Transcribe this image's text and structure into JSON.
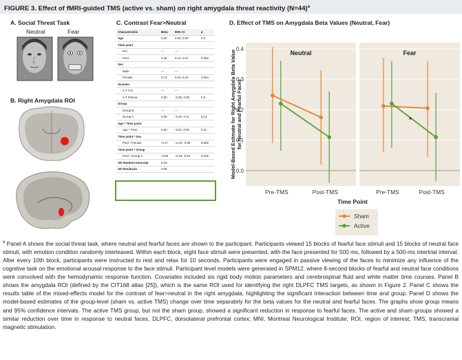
{
  "figure": {
    "title": "FIGURE 3.  Effect of fMRI-guided TMS (active vs. sham) on right amygdala threat reactivity (N=44)",
    "title_sup": "a"
  },
  "panel_a": {
    "title": "A. Social Threat Task",
    "labels": [
      "Neutral",
      "Fear"
    ]
  },
  "panel_b": {
    "title": "B. Right Amygdala ROI"
  },
  "panel_c": {
    "title": "C. Contrast Fear>Neutral",
    "headers": [
      "Characteristic",
      "Beta",
      "95% CI",
      "p"
    ],
    "rows": [
      {
        "label": "Age",
        "beta": "0.00",
        "ci": "0.00, 0.00",
        "p": "0.3",
        "type": "bold"
      },
      {
        "label": "Time point",
        "beta": "",
        "ci": "",
        "p": "",
        "type": "bold"
      },
      {
        "label": "Pre",
        "beta": "—",
        "ci": "—",
        "p": "",
        "type": "ind"
      },
      {
        "label": "Post",
        "beta": "0.36",
        "ci": "0.14, 0.57",
        "p": "0.002",
        "type": "ind"
      },
      {
        "label": "Sex",
        "beta": "",
        "ci": "",
        "p": "",
        "type": "bold"
      },
      {
        "label": "Male",
        "beta": "—",
        "ci": "—",
        "p": "",
        "type": "ind"
      },
      {
        "label": "Female",
        "beta": "0.13",
        "ci": "0.04, 0.22",
        "p": "0.004",
        "type": "ind"
      },
      {
        "label": "Scanner",
        "beta": "",
        "ci": "",
        "p": "",
        "type": "bold"
      },
      {
        "label": "3-T Trio",
        "beta": "—",
        "ci": "—",
        "p": "",
        "type": "ind"
      },
      {
        "label": "3-T Prisma",
        "beta": "0.00",
        "ci": "-0.06, 0.05",
        "p": "0.9",
        "type": "ind"
      },
      {
        "label": "Group",
        "beta": "",
        "ci": "",
        "p": "",
        "type": "bold"
      },
      {
        "label": "Group B",
        "beta": "—",
        "ci": "—",
        "p": "",
        "type": "ind"
      },
      {
        "label": "Group A",
        "beta": "0.05",
        "ci": "-0.02, 0.11",
        "p": "0.13",
        "type": "ind"
      },
      {
        "label": "Age * Time point",
        "beta": "",
        "ci": "",
        "p": "",
        "type": "bold"
      },
      {
        "label": "Age * Post",
        "beta": "0.00",
        "ci": "-0.01, 0.00",
        "p": "0.11",
        "type": "ind"
      },
      {
        "label": "Time point * Sex",
        "beta": "",
        "ci": "",
        "p": "",
        "type": "bold"
      },
      {
        "label": "Post * Female",
        "beta": "-0.17",
        "ci": "-0.29, -0.06",
        "p": "0.005",
        "type": "ind"
      },
      {
        "label": "Time point * Group",
        "beta": "",
        "ci": "",
        "p": "",
        "type": "bold"
      },
      {
        "label": "Post * Group A",
        "beta": "-0.09",
        "ci": "-0.18, -0.01",
        "p": "0.035",
        "type": "ind"
      },
      {
        "label": "SD Random Intercept",
        "beta": "0.03",
        "ci": "",
        "p": "",
        "type": "bold"
      },
      {
        "label": "SD Residuals",
        "beta": "0.09",
        "ci": "",
        "p": "",
        "type": "bold"
      }
    ]
  },
  "panel_d": {
    "title": "D. Effect of TMS on Amygdala Beta Values (Neutral, Fear)"
  },
  "chart_data": {
    "type": "line",
    "title": "D. Effect of TMS on Amygdala Beta Values (Neutral, Fear)",
    "ylabel": "Model-Based Estimate for Right Amygdala Beta Value for Neutral and Fearful Faces",
    "xlabel": "Time Point",
    "ylim": [
      -0.05,
      0.42
    ],
    "yticks": [
      "0.0",
      "0.1",
      "0.2",
      "0.3",
      "0.4"
    ],
    "yticks_num": [
      0.0,
      0.1,
      0.2,
      0.3,
      0.4
    ],
    "categories": [
      "Pre-TMS",
      "Post-TMS"
    ],
    "facets": [
      "Neutral",
      "Fear"
    ],
    "legend": [
      "Sham",
      "Active"
    ],
    "colors": {
      "Sham": "#e8822a",
      "Active": "#5b9b35",
      "facet_bg": "#efe9df",
      "zero_line": "#c8c2b8"
    },
    "annotation": "*",
    "series": [
      {
        "facet": "Neutral",
        "name": "Sham",
        "values": [
          0.247,
          0.175
        ],
        "lower": [
          0.09,
          0.02
        ],
        "upper": [
          0.405,
          0.33
        ]
      },
      {
        "facet": "Neutral",
        "name": "Active",
        "values": [
          0.22,
          0.11
        ],
        "lower": [
          0.065,
          -0.04
        ],
        "upper": [
          0.36,
          0.26
        ]
      },
      {
        "facet": "Fear",
        "name": "Sham",
        "values": [
          0.212,
          0.205
        ],
        "lower": [
          0.06,
          0.045
        ],
        "upper": [
          0.37,
          0.36
        ]
      },
      {
        "facet": "Fear",
        "name": "Active",
        "values": [
          0.22,
          0.11
        ],
        "lower": [
          0.075,
          -0.035
        ],
        "upper": [
          0.36,
          0.255
        ]
      }
    ]
  },
  "footnote": {
    "sup": "a",
    "text": "Panel A shows the social threat task, where neutral and fearful faces are shown to the participant. Participants viewed 15 blocks of fearful face stimuli and 15 blocks of neutral face stimuli, with emotion condition randomly interleaved. Within each block, eight face stimuli were presented, with the face presented for 500 ms, followed by a 500-ms intertrial interval. After every 10th block, participants were instructed to rest and relax for 10 seconds. Participants were engaged in passive viewing of the faces to minimize any influence of the cognitive task on the emotional arousal response to the face stimuli. Participant level models were generated in SPM12, where 8-second blocks of fearful and neutral face conditions were convolved with the hemodynamic response function. Covariates included six rigid body motion parameters and cerebrospinal fluid and white matter time courses. Panel B shows the amygdala ROI (defined by the CIT168 atlas [25]), which is the same ROI used for identifying the right DLPFC TMS targets, as shown in Figure 2. Panel C shows the results table of the mixed-effects model for the contrast of fear>neutral in the right amygdala, highlighting the significant interaction between time and group. Panel D shows the model-based estimates of the group-level (sham vs. active TMS) change over time separately for the beta values for the neutral and fearful faces. The graphs show group means and 95% confidence intervals. The active TMS group, but not the sham group, showed a significant reduction in response to fearful faces. The active and sham groups showed a similar reduction over time in response to neutral faces. DLPFC, dorsolateral prefrontal cortex; MNI, Montreal Neurological Institute; ROI, region of interest; TMS, transcranial magnetic stimulation."
  }
}
